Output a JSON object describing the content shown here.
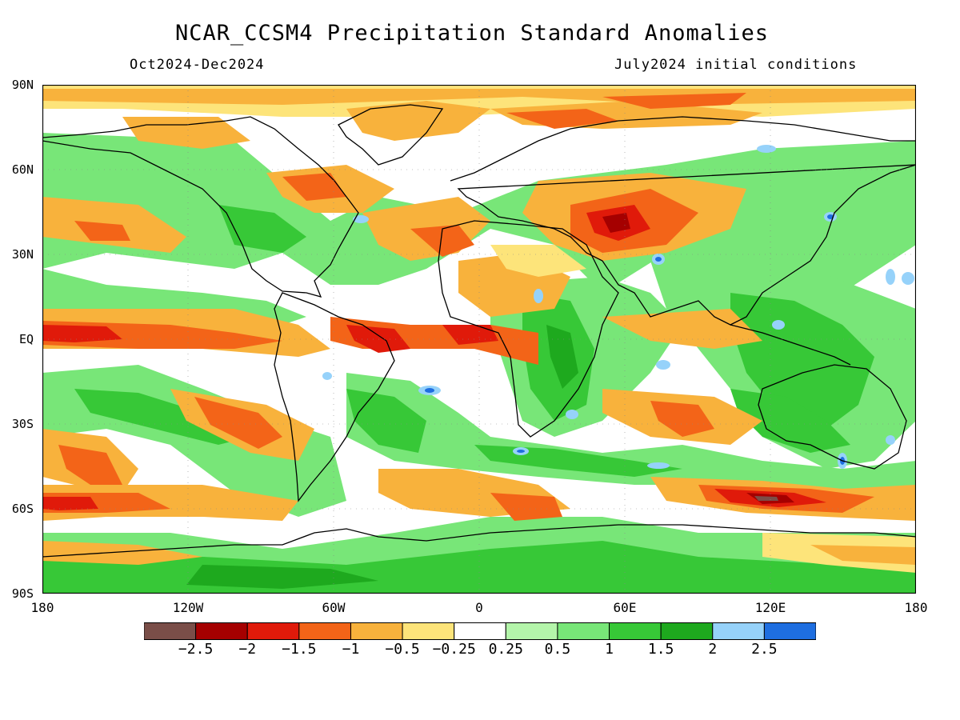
{
  "header": {
    "title": "NCAR_CCSM4 Precipitation Standard Anomalies",
    "period": "Oct2024-Dec2024",
    "init": "July2024 initial conditions"
  },
  "axes": {
    "lat_labels": [
      "90N",
      "60N",
      "30N",
      "EQ",
      "30S",
      "60S",
      "90S"
    ],
    "lon_labels": [
      "180",
      "120W",
      "60W",
      "0",
      "60E",
      "120E",
      "180"
    ]
  },
  "legend": {
    "colors": [
      "#7a4e48",
      "#a50000",
      "#e01a0a",
      "#f36418",
      "#f8b23c",
      "#fde47a",
      "#ffffff",
      "#b4f5aa",
      "#78e678",
      "#37c837",
      "#1ea91e",
      "#96d2fa",
      "#1e6ee0"
    ],
    "labels": [
      "−2.5",
      "−2",
      "−1.5",
      "−1",
      "−0.5",
      "−0.25",
      "0.25",
      "0.5",
      "1",
      "1.5",
      "2",
      "2.5"
    ]
  }
}
